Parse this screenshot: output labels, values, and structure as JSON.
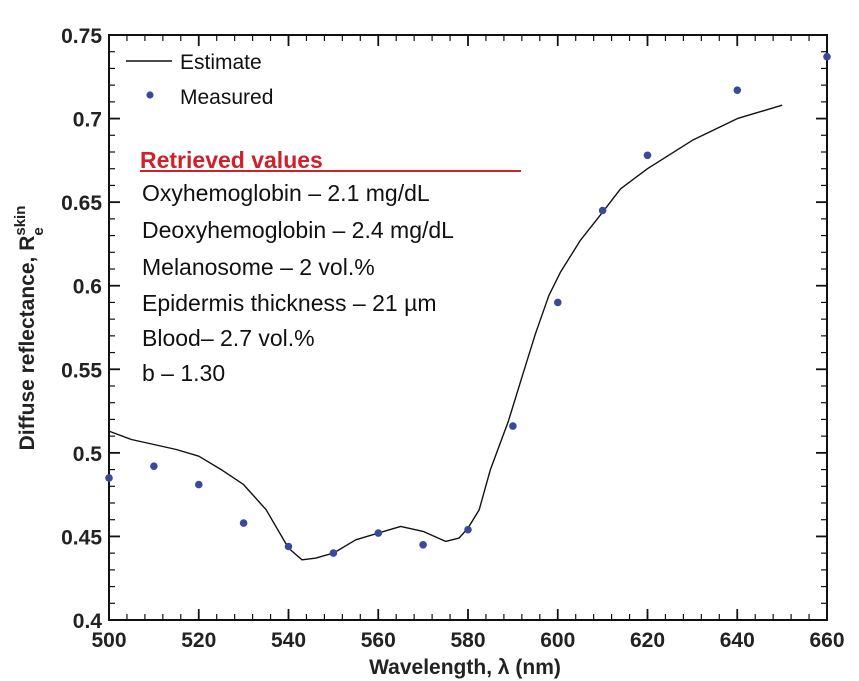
{
  "chart_data": {
    "type": "line",
    "title": "",
    "xlabel": "Wavelength, λ (nm)",
    "ylabel": {
      "main": "Diffuse reflectance, R",
      "superscript": "skin",
      "subscript": "e"
    },
    "xlim": [
      500,
      660
    ],
    "ylim": [
      0.4,
      0.75
    ],
    "x_ticks": [
      500,
      520,
      540,
      560,
      580,
      600,
      620,
      640,
      660
    ],
    "x_tick_labels": [
      "500",
      "520",
      "540",
      "560",
      "580",
      "600",
      "620",
      "640",
      "660"
    ],
    "x_minor_step": 4,
    "y_ticks": [
      0.4,
      0.45,
      0.5,
      0.55,
      0.6,
      0.65,
      0.7,
      0.75
    ],
    "y_tick_labels": [
      "0.4",
      "0.45",
      "0.5",
      "0.55",
      "0.6",
      "0.65",
      "0.7",
      "0.75"
    ],
    "y_minor_step": 0.01,
    "grid": false,
    "legend": {
      "position": "top-left",
      "entries": [
        "Estimate",
        "Measured"
      ]
    },
    "series": [
      {
        "name": "Estimate",
        "kind": "line",
        "color": "#111111",
        "x": [
          500,
          505,
          510,
          515,
          520,
          525,
          530,
          535,
          540,
          543,
          546,
          550,
          555,
          560,
          565,
          570,
          575,
          578,
          580,
          582.5,
          585,
          589,
          592,
          595,
          598,
          600.6,
          605,
          610,
          614,
          620,
          630,
          640,
          650
        ],
        "y": [
          0.513,
          0.508,
          0.505,
          0.502,
          0.498,
          0.49,
          0.481,
          0.466,
          0.443,
          0.436,
          0.437,
          0.44,
          0.448,
          0.452,
          0.456,
          0.453,
          0.447,
          0.449,
          0.455,
          0.466,
          0.49,
          0.519,
          0.545,
          0.571,
          0.594,
          0.608,
          0.627,
          0.644,
          0.658,
          0.67,
          0.687,
          0.7,
          0.708
        ]
      },
      {
        "name": "Measured",
        "kind": "scatter",
        "color": "#3a4a9a",
        "x": [
          500,
          510,
          520,
          530,
          540,
          550,
          560,
          570,
          580,
          590,
          600,
          610,
          620,
          640,
          660
        ],
        "y": [
          0.485,
          0.492,
          0.481,
          0.458,
          0.444,
          0.44,
          0.452,
          0.445,
          0.454,
          0.516,
          0.59,
          0.645,
          0.678,
          0.717,
          0.737
        ]
      }
    ],
    "annotations": {
      "heading": "Retrieved values",
      "heading_color": "#d0202a",
      "lines": [
        "Oxyhemoglobin – 2.1 mg/dL",
        "Deoxyhemoglobin – 2.4 mg/dL",
        "Melanosome – 2 vol.%",
        "Epidermis thickness – 21 µm",
        "Blood– 2.7 vol.%",
        "b – 1.30"
      ]
    }
  }
}
